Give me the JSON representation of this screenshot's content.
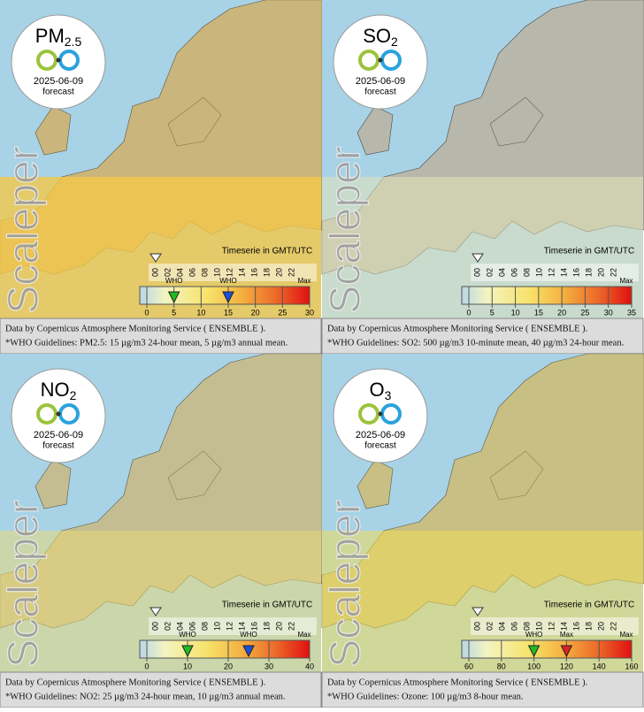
{
  "panels": [
    {
      "pollutant": "PM",
      "subscript": "2.5",
      "date": "2025-06-09",
      "forecast": "forecast",
      "watermark": "Scaleper",
      "timeline_label": "Timeserie in GMT/UTC",
      "hours": [
        "00",
        "02",
        "04",
        "06",
        "08",
        "10",
        "12",
        "14",
        "16",
        "18",
        "20",
        "22"
      ],
      "scale": {
        "ticks": [
          0,
          5,
          10,
          15,
          20,
          25,
          30
        ],
        "max_label": "Max",
        "markers": [
          {
            "label": "WHO",
            "value": 5,
            "color": "#22bb22"
          },
          {
            "label": "WHO",
            "value": 15,
            "color": "#1a4fd8"
          }
        ]
      },
      "credit": "Data by Copernicus Atmosphere Monitoring Service ( ENSEMBLE ).",
      "guideline": "*WHO Guidelines: PM2.5: 15 µg/m3 24-hour mean, 5 µg/m3 annual mean."
    },
    {
      "pollutant": "SO",
      "subscript": "2",
      "date": "2025-06-09",
      "forecast": "forecast",
      "watermark": "Scaleper",
      "timeline_label": "Timeserie in GMT/UTC",
      "hours": [
        "00",
        "02",
        "04",
        "06",
        "08",
        "10",
        "12",
        "14",
        "16",
        "18",
        "20",
        "22"
      ],
      "scale": {
        "ticks": [
          0,
          5,
          10,
          15,
          20,
          25,
          30,
          35
        ],
        "max_label": "Max",
        "markers": []
      },
      "credit": "Data by Copernicus Atmosphere Monitoring Service ( ENSEMBLE ).",
      "guideline": "*WHO Guidelines: SO2: 500 µg/m3 10-minute mean, 40 µg/m3 24-hour mean."
    },
    {
      "pollutant": "NO",
      "subscript": "2",
      "date": "2025-06-09",
      "forecast": "forecast",
      "watermark": "Scaleper",
      "timeline_label": "Timeserie in GMT/UTC",
      "hours": [
        "00",
        "02",
        "04",
        "06",
        "08",
        "10",
        "12",
        "14",
        "16",
        "18",
        "20",
        "22"
      ],
      "scale": {
        "ticks": [
          0,
          10,
          20,
          30,
          40
        ],
        "max_label": "Max",
        "markers": [
          {
            "label": "WHO",
            "value": 10,
            "color": "#22bb22"
          },
          {
            "label": "WHO",
            "value": 25,
            "color": "#1a4fd8"
          }
        ]
      },
      "credit": "Data by Copernicus Atmosphere Monitoring Service ( ENSEMBLE ).",
      "guideline": "*WHO Guidelines: NO2: 25 µg/m3 24-hour mean, 10 µg/m3 annual mean."
    },
    {
      "pollutant": "O",
      "subscript": "3",
      "date": "2025-06-09",
      "forecast": "forecast",
      "watermark": "Scaleper",
      "timeline_label": "Timeserie in GMT/UTC",
      "hours": [
        "00",
        "02",
        "04",
        "06",
        "08",
        "10",
        "12",
        "14",
        "16",
        "18",
        "20",
        "22"
      ],
      "scale": {
        "ticks": [
          60,
          80,
          100,
          120,
          140,
          160
        ],
        "max_label": "Max",
        "markers": [
          {
            "label": "WHO",
            "value": 100,
            "color": "#22bb22"
          },
          {
            "label": "Max",
            "value": 120,
            "color": "#dd2222"
          }
        ]
      },
      "credit": "Data by Copernicus Atmosphere Monitoring Service ( ENSEMBLE ).",
      "guideline": "*WHO Guidelines: Ozone: 100 µg/m3 8-hour mean."
    }
  ]
}
